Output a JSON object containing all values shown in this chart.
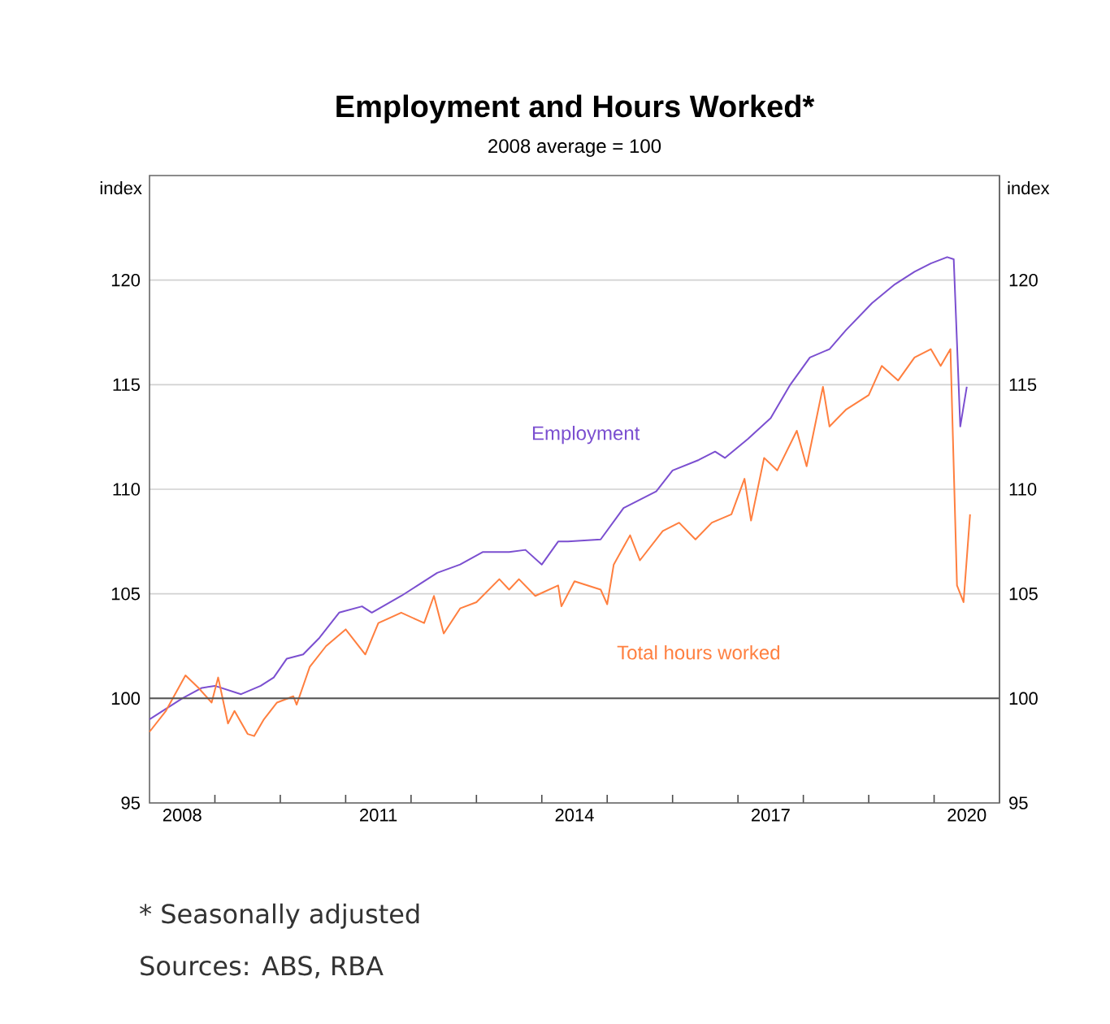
{
  "chart_data": {
    "type": "line",
    "title": "Employment and Hours Worked*",
    "subtitle": "2008 average = 100",
    "ylabel": "index",
    "y2label": "index",
    "series": [
      {
        "name": "Employment",
        "color": "#7b4fd0",
        "x": [
          2008.0,
          2008.5,
          2008.8,
          2009.0,
          2009.4,
          2009.7,
          2009.9,
          2010.1,
          2010.35,
          2010.6,
          2010.9,
          2011.25,
          2011.4,
          2011.85,
          2012.1,
          2012.4,
          2012.75,
          2013.1,
          2013.5,
          2013.75,
          2014.0,
          2014.25,
          2014.4,
          2014.9,
          2015.25,
          2015.75,
          2016.0,
          2016.4,
          2016.65,
          2016.8,
          2017.15,
          2017.5,
          2017.8,
          2018.1,
          2018.4,
          2018.65,
          2019.05,
          2019.4,
          2019.7,
          2019.95,
          2020.2,
          2020.3,
          2020.4,
          2020.5
        ],
        "values": [
          99.0,
          100.0,
          100.5,
          100.6,
          100.2,
          100.6,
          101.0,
          101.9,
          102.1,
          102.9,
          104.1,
          104.4,
          104.1,
          104.9,
          105.4,
          106.0,
          106.4,
          107.0,
          107.0,
          107.1,
          106.4,
          107.5,
          107.5,
          107.6,
          109.1,
          109.9,
          110.9,
          111.4,
          111.8,
          111.5,
          112.4,
          113.4,
          115.0,
          116.3,
          116.7,
          117.6,
          118.9,
          119.8,
          120.4,
          120.8,
          121.1,
          121.0,
          113.0,
          114.9
        ]
      },
      {
        "name": "Total hours worked",
        "color": "#ff7f3f",
        "x": [
          2008.0,
          2008.25,
          2008.55,
          2008.75,
          2008.95,
          2009.05,
          2009.2,
          2009.3,
          2009.5,
          2009.6,
          2009.75,
          2009.95,
          2010.2,
          2010.25,
          2010.45,
          2010.7,
          2011.0,
          2011.3,
          2011.5,
          2011.85,
          2012.2,
          2012.35,
          2012.5,
          2012.75,
          2013.0,
          2013.35,
          2013.5,
          2013.65,
          2013.9,
          2014.25,
          2014.3,
          2014.5,
          2014.9,
          2015.0,
          2015.1,
          2015.35,
          2015.5,
          2015.85,
          2016.1,
          2016.35,
          2016.6,
          2016.9,
          2017.1,
          2017.2,
          2017.4,
          2017.6,
          2017.9,
          2018.05,
          2018.3,
          2018.4,
          2018.65,
          2019.0,
          2019.2,
          2019.45,
          2019.7,
          2019.95,
          2020.1,
          2020.25,
          2020.35,
          2020.45,
          2020.55
        ],
        "values": [
          98.4,
          99.4,
          101.1,
          100.5,
          99.8,
          101.0,
          98.8,
          99.4,
          98.3,
          98.2,
          99.0,
          99.8,
          100.1,
          99.7,
          101.5,
          102.5,
          103.3,
          102.1,
          103.6,
          104.1,
          103.6,
          104.9,
          103.1,
          104.3,
          104.6,
          105.7,
          105.2,
          105.7,
          104.9,
          105.4,
          104.4,
          105.6,
          105.2,
          104.5,
          106.4,
          107.8,
          106.6,
          108.0,
          108.4,
          107.6,
          108.4,
          108.8,
          110.5,
          108.5,
          111.5,
          110.9,
          112.8,
          111.1,
          114.9,
          113.0,
          113.8,
          114.5,
          115.9,
          115.2,
          116.3,
          116.7,
          115.9,
          116.7,
          105.4,
          104.6,
          108.8
        ]
      }
    ],
    "xlim": [
      2008,
      2021
    ],
    "xticks": [
      {
        "value": 2008.5,
        "label": "2008"
      },
      {
        "value": 2009,
        "label": null
      },
      {
        "value": 2010,
        "label": null
      },
      {
        "value": 2011,
        "label": null
      },
      {
        "value": 2011.5,
        "label": "2011"
      },
      {
        "value": 2012,
        "label": null
      },
      {
        "value": 2013,
        "label": null
      },
      {
        "value": 2014,
        "label": null
      },
      {
        "value": 2014.5,
        "label": "2014"
      },
      {
        "value": 2015,
        "label": null
      },
      {
        "value": 2016,
        "label": null
      },
      {
        "value": 2017,
        "label": null
      },
      {
        "value": 2017.5,
        "label": "2017"
      },
      {
        "value": 2018,
        "label": null
      },
      {
        "value": 2019,
        "label": null
      },
      {
        "value": 2020,
        "label": null
      },
      {
        "value": 2020.5,
        "label": "2020"
      }
    ],
    "ylim": [
      95,
      125
    ],
    "yticks": [
      95,
      100,
      105,
      110,
      115,
      120
    ],
    "y2lim": [
      95,
      125
    ],
    "y2ticks": [
      95,
      100,
      105,
      110,
      115,
      120
    ],
    "grid": "y",
    "legend": false,
    "marker": "none",
    "line_style": "solid",
    "ref_lines": [
      {
        "axis": "y",
        "value": 100,
        "color": "#555555"
      }
    ],
    "annotations": [
      "* Seasonally adjusted",
      "Sources: ABS, RBA"
    ]
  }
}
